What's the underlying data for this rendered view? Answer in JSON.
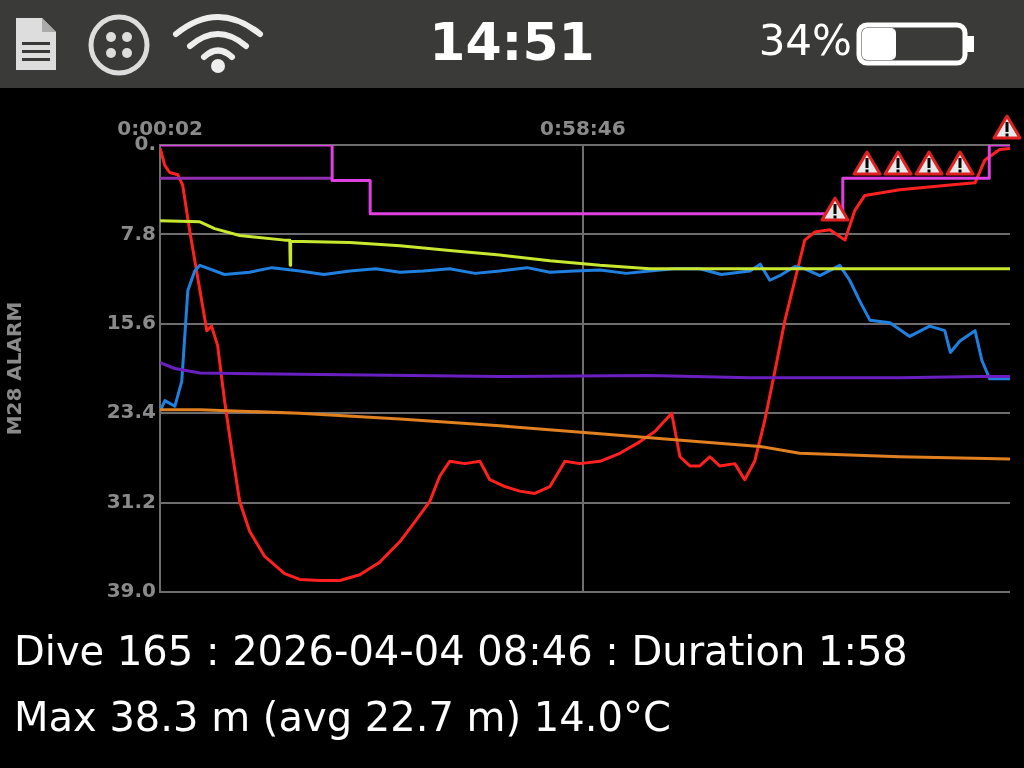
{
  "chart_data": {
    "type": "line",
    "ylabel": "M28 ALARM",
    "xlim": [
      0.0006,
      1.968
    ],
    "xticks": [
      {
        "value": 0.0006,
        "label": "0:00:02"
      },
      {
        "value": 0.9794,
        "label": "0:58:46"
      }
    ],
    "ylim": [
      39,
      0
    ],
    "yticks": [
      {
        "value": 0,
        "label": "0."
      },
      7.8,
      15.6,
      23.4,
      31.2,
      {
        "value": 39,
        "label": "39.0"
      }
    ],
    "grid": true,
    "annotations": [
      "14:51",
      "34%",
      "Dive 165 : 2026-04-04 08:46 : Duration 1:58",
      "Max 38.3 m (avg 22.7 m) 14.0°C"
    ],
    "series": [
      {
        "type": "step",
        "color": "#e040e0",
        "x": [
          0.001,
          0.399,
          0.487,
          1.581,
          1.92,
          1.968
        ],
        "values": [
          0,
          3.1,
          6.0,
          2.9,
          0,
          0
        ]
      },
      {
        "type": "step",
        "color": "#9030b0",
        "x": [
          0.001,
          0.399
        ],
        "values": [
          2.9,
          2.9
        ]
      },
      {
        "color": "#c8e830",
        "x": [
          0.001,
          0.093,
          0.127,
          0.185,
          0.289,
          0.301,
          0.302,
          0.303,
          0.44,
          0.556,
          0.671,
          0.787,
          0.903,
          1.019,
          1.134,
          1.25,
          1.481,
          1.968
        ],
        "values": [
          6.6,
          6.7,
          7.3,
          7.9,
          8.3,
          8.3,
          10.5,
          8.4,
          8.5,
          8.8,
          9.2,
          9.6,
          10.1,
          10.5,
          10.8,
          10.8,
          10.8,
          10.8
        ]
      },
      {
        "color": "#6a20c0",
        "x": [
          0.001,
          0.035,
          0.093,
          0.324,
          0.787,
          1.134,
          1.366,
          1.713,
          1.898,
          1.968
        ],
        "values": [
          19.0,
          19.5,
          19.9,
          20.0,
          20.2,
          20.1,
          20.3,
          20.3,
          20.2,
          20.2
        ]
      },
      {
        "color": "#e08020",
        "x": [
          0.001,
          0.093,
          0.324,
          0.556,
          0.787,
          1.019,
          1.25,
          1.389,
          1.481,
          1.713,
          1.968
        ],
        "values": [
          23.1,
          23.1,
          23.4,
          23.9,
          24.5,
          25.2,
          25.9,
          26.3,
          26.9,
          27.2,
          27.4
        ]
      },
      {
        "color": "#2080e0",
        "x": [
          0.001,
          0.012,
          0.035,
          0.051,
          0.065,
          0.081,
          0.093,
          0.15,
          0.208,
          0.26,
          0.324,
          0.38,
          0.44,
          0.5,
          0.556,
          0.61,
          0.671,
          0.73,
          0.787,
          0.85,
          0.903,
          0.96,
          1.019,
          1.08,
          1.134,
          1.19,
          1.25,
          1.3,
          1.366,
          1.39,
          1.412,
          1.435,
          1.47,
          1.493,
          1.528,
          1.574,
          1.597,
          1.62,
          1.644,
          1.69,
          1.736,
          1.782,
          1.817,
          1.83,
          1.852,
          1.887,
          1.903,
          1.921,
          1.968
        ],
        "values": [
          23.2,
          22.3,
          22.8,
          20.6,
          12.7,
          11.0,
          10.5,
          11.3,
          11.1,
          10.7,
          11.0,
          11.3,
          11.0,
          10.8,
          11.1,
          11.0,
          10.8,
          11.2,
          11.0,
          10.7,
          11.1,
          11.0,
          10.9,
          11.2,
          11.0,
          10.8,
          10.8,
          11.3,
          11.0,
          10.4,
          11.8,
          11.4,
          10.6,
          10.8,
          11.4,
          10.5,
          11.8,
          13.6,
          15.3,
          15.5,
          16.7,
          15.8,
          16.2,
          18.1,
          17.1,
          16.2,
          18.8,
          20.4,
          20.4
        ]
      },
      {
        "color": "#ff2020",
        "x": [
          0.001,
          0.012,
          0.023,
          0.042,
          0.053,
          0.069,
          0.093,
          0.109,
          0.12,
          0.134,
          0.15,
          0.167,
          0.185,
          0.208,
          0.243,
          0.289,
          0.324,
          0.37,
          0.417,
          0.463,
          0.509,
          0.556,
          0.59,
          0.625,
          0.648,
          0.671,
          0.706,
          0.741,
          0.764,
          0.799,
          0.833,
          0.868,
          0.903,
          0.938,
          0.972,
          1.019,
          1.065,
          1.111,
          1.146,
          1.185,
          1.204,
          1.227,
          1.25,
          1.273,
          1.296,
          1.331,
          1.354,
          1.377,
          1.4,
          1.424,
          1.447,
          1.47,
          1.493,
          1.516,
          1.551,
          1.586,
          1.609,
          1.632,
          1.713,
          1.829,
          1.887,
          1.91,
          1.944,
          1.968
        ],
        "values": [
          0.3,
          1.8,
          2.4,
          2.6,
          3.5,
          7.4,
          12.7,
          16.2,
          15.8,
          17.5,
          22.3,
          26.7,
          31.1,
          33.7,
          35.9,
          37.4,
          37.9,
          38.0,
          38.0,
          37.5,
          36.4,
          34.6,
          32.9,
          31.1,
          28.9,
          27.6,
          27.8,
          27.6,
          29.2,
          29.8,
          30.2,
          30.4,
          29.8,
          27.6,
          27.8,
          27.6,
          26.9,
          25.9,
          25.0,
          23.4,
          27.2,
          28.0,
          28.0,
          27.2,
          28.0,
          27.8,
          29.2,
          27.6,
          24.1,
          19.7,
          15.3,
          11.8,
          8.3,
          7.6,
          7.4,
          8.3,
          5.7,
          4.4,
          3.9,
          3.5,
          3.3,
          1.3,
          0.4,
          0.3
        ]
      }
    ]
  }
}
